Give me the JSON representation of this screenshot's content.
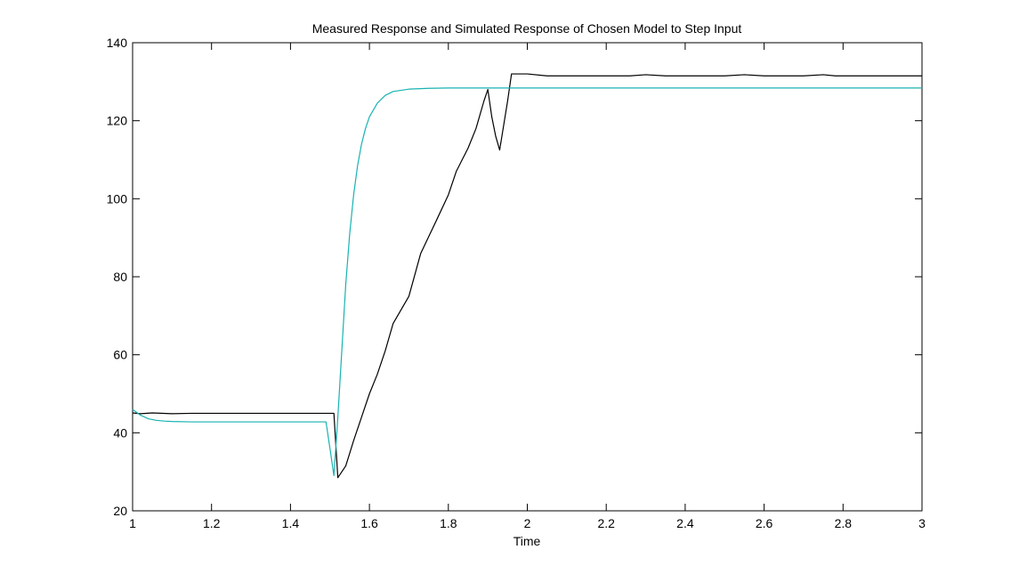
{
  "chart_data": {
    "type": "line",
    "title": "Measured Response and Simulated Response of Chosen Model to Step Input",
    "xlabel": "Time",
    "ylabel": "",
    "xlim": [
      1,
      3
    ],
    "ylim": [
      20,
      140
    ],
    "grid": false,
    "xticks": [
      1,
      1.2,
      1.4,
      1.6,
      1.8,
      2,
      2.2,
      2.4,
      2.6,
      2.8,
      3
    ],
    "xtick_labels": [
      "1",
      "1.2",
      "1.4",
      "1.6",
      "1.8",
      "2",
      "2.2",
      "2.4",
      "2.6",
      "2.8",
      "3"
    ],
    "yticks": [
      20,
      40,
      60,
      80,
      100,
      120,
      140
    ],
    "ytick_labels": [
      "20",
      "40",
      "60",
      "80",
      "100",
      "120",
      "140"
    ],
    "series": [
      {
        "color": "#000000",
        "points": [
          [
            1.0,
            45.1
          ],
          [
            1.02,
            44.9
          ],
          [
            1.05,
            45.1
          ],
          [
            1.1,
            44.9
          ],
          [
            1.15,
            45.0
          ],
          [
            1.2,
            45.0
          ],
          [
            1.3,
            45.0
          ],
          [
            1.4,
            45.0
          ],
          [
            1.45,
            45.0
          ],
          [
            1.5,
            45.0
          ],
          [
            1.51,
            45.0
          ],
          [
            1.52,
            28.5
          ],
          [
            1.54,
            31.5
          ],
          [
            1.56,
            38.0
          ],
          [
            1.58,
            44.0
          ],
          [
            1.6,
            50.0
          ],
          [
            1.62,
            55.0
          ],
          [
            1.64,
            61.0
          ],
          [
            1.66,
            68.0
          ],
          [
            1.7,
            75.0
          ],
          [
            1.73,
            86.0
          ],
          [
            1.77,
            94.5
          ],
          [
            1.8,
            101.0
          ],
          [
            1.82,
            107.0
          ],
          [
            1.85,
            113.0
          ],
          [
            1.87,
            118.0
          ],
          [
            1.89,
            125.0
          ],
          [
            1.9,
            128.0
          ],
          [
            1.91,
            121.0
          ],
          [
            1.92,
            116.0
          ],
          [
            1.93,
            112.5
          ],
          [
            1.95,
            125.0
          ],
          [
            1.96,
            132.0
          ],
          [
            2.0,
            132.0
          ],
          [
            2.05,
            131.5
          ],
          [
            2.1,
            131.5
          ],
          [
            2.2,
            131.5
          ],
          [
            2.26,
            131.5
          ],
          [
            2.3,
            131.8
          ],
          [
            2.35,
            131.5
          ],
          [
            2.45,
            131.5
          ],
          [
            2.5,
            131.5
          ],
          [
            2.55,
            131.8
          ],
          [
            2.6,
            131.5
          ],
          [
            2.7,
            131.5
          ],
          [
            2.75,
            131.8
          ],
          [
            2.78,
            131.5
          ],
          [
            2.9,
            131.5
          ],
          [
            3.0,
            131.5
          ]
        ]
      },
      {
        "color": "#19b2b2",
        "points": [
          [
            1.0,
            46.0
          ],
          [
            1.02,
            44.5
          ],
          [
            1.04,
            43.6
          ],
          [
            1.06,
            43.2
          ],
          [
            1.08,
            43.0
          ],
          [
            1.1,
            42.9
          ],
          [
            1.15,
            42.8
          ],
          [
            1.2,
            42.8
          ],
          [
            1.3,
            42.8
          ],
          [
            1.4,
            42.8
          ],
          [
            1.48,
            42.8
          ],
          [
            1.49,
            42.8
          ],
          [
            1.5,
            36.0
          ],
          [
            1.51,
            29.0
          ],
          [
            1.52,
            44.0
          ],
          [
            1.53,
            61.0
          ],
          [
            1.54,
            78.0
          ],
          [
            1.55,
            91.0
          ],
          [
            1.56,
            101.0
          ],
          [
            1.57,
            108.5
          ],
          [
            1.58,
            114.0
          ],
          [
            1.59,
            118.0
          ],
          [
            1.6,
            121.0
          ],
          [
            1.62,
            124.5
          ],
          [
            1.64,
            126.5
          ],
          [
            1.66,
            127.5
          ],
          [
            1.7,
            128.1
          ],
          [
            1.75,
            128.3
          ],
          [
            1.8,
            128.4
          ],
          [
            2.0,
            128.4
          ],
          [
            2.5,
            128.4
          ],
          [
            3.0,
            128.4
          ]
        ]
      }
    ]
  }
}
